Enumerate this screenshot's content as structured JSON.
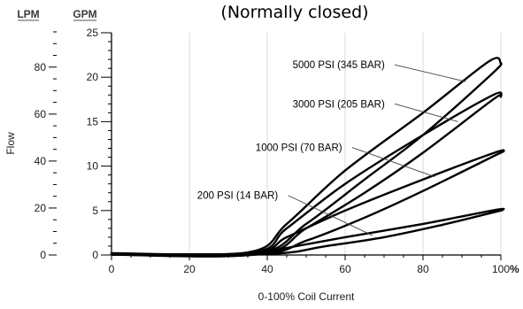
{
  "chart_data": {
    "type": "line",
    "title": "(Normally closed)",
    "xlabel": "0-100% Coil Current",
    "ylabel": "Flow",
    "x_unit": "%",
    "y_units": [
      "LPM",
      "GPM"
    ],
    "xlim": [
      0,
      100
    ],
    "ylim_gpm": [
      0,
      25
    ],
    "x_ticks": [
      0,
      20,
      40,
      60,
      80,
      100
    ],
    "y_ticks_gpm": [
      0,
      5,
      10,
      15,
      20,
      25
    ],
    "y_ticks_lpm": [
      0,
      20,
      40,
      60,
      80
    ],
    "grid": true,
    "series": [
      {
        "name": "5000 PSI (345 BAR)",
        "upper": [
          [
            0,
            0.2
          ],
          [
            35,
            0.3
          ],
          [
            45,
            3.5
          ],
          [
            60,
            9.5
          ],
          [
            80,
            16
          ],
          [
            97,
            21.8
          ],
          [
            100,
            21.6
          ]
        ],
        "lower": [
          [
            0,
            0.05
          ],
          [
            37,
            0.1
          ],
          [
            50,
            3.5
          ],
          [
            65,
            8.5
          ],
          [
            80,
            13.5
          ],
          [
            98,
            20.5
          ],
          [
            100,
            21.6
          ]
        ]
      },
      {
        "name": "3000 PSI (205 BAR)",
        "upper": [
          [
            0,
            0.15
          ],
          [
            36,
            0.25
          ],
          [
            45,
            3
          ],
          [
            60,
            8
          ],
          [
            80,
            13.5
          ],
          [
            98,
            18
          ],
          [
            100,
            17.8
          ]
        ],
        "lower": [
          [
            0,
            0.05
          ],
          [
            38,
            0.1
          ],
          [
            50,
            3
          ],
          [
            65,
            7
          ],
          [
            80,
            11.5
          ],
          [
            98,
            17.5
          ],
          [
            100,
            17.8
          ]
        ]
      },
      {
        "name": "1000 PSI (70 BAR)",
        "upper": [
          [
            0,
            0.1
          ],
          [
            36,
            0.2
          ],
          [
            45,
            2
          ],
          [
            60,
            5
          ],
          [
            80,
            8.5
          ],
          [
            99,
            11.6
          ],
          [
            100,
            11.5
          ]
        ],
        "lower": [
          [
            0,
            0.05
          ],
          [
            38,
            0.1
          ],
          [
            50,
            1.6
          ],
          [
            65,
            4.2
          ],
          [
            80,
            7.2
          ],
          [
            99,
            11.3
          ],
          [
            100,
            11.5
          ]
        ]
      },
      {
        "name": "200 PSI (14 BAR)",
        "upper": [
          [
            0,
            0.1
          ],
          [
            37,
            0.15
          ],
          [
            45,
            0.8
          ],
          [
            60,
            2
          ],
          [
            80,
            3.5
          ],
          [
            99,
            5.1
          ],
          [
            100,
            5
          ]
        ],
        "lower": [
          [
            0,
            0.05
          ],
          [
            40,
            0.1
          ],
          [
            55,
            1
          ],
          [
            70,
            2
          ],
          [
            85,
            3.4
          ],
          [
            99,
            4.9
          ],
          [
            100,
            5
          ]
        ]
      }
    ],
    "annotations": [
      {
        "text": "5000 PSI (345 BAR)",
        "x": 46.5,
        "y": 21.4,
        "target": [
          91,
          19.5
        ]
      },
      {
        "text": "3000 PSI (205 BAR)",
        "x": 46.5,
        "y": 17.0,
        "target": [
          89,
          15.0
        ]
      },
      {
        "text": "1000 PSI (70 BAR)",
        "x": 37.0,
        "y": 12.1,
        "target": [
          83,
          8.8
        ]
      },
      {
        "text": "200 PSI (14 BAR)",
        "x": 22.0,
        "y": 6.7,
        "target": [
          67,
          2.2
        ]
      }
    ]
  }
}
